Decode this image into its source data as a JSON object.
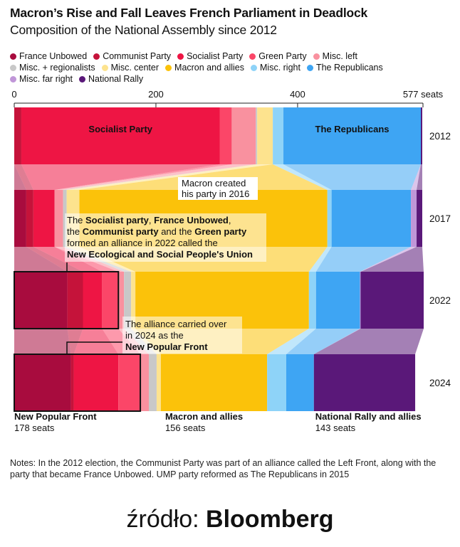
{
  "title": "Macron’s Rise and Fall Leaves French Parliament in Deadlock",
  "subtitle": "Composition of the National Assembly since 2012",
  "source": {
    "prefix": "źródło:",
    "brand": "Bloomberg"
  },
  "notes": "Notes: In the 2012 election, the Communist Party was part of an alliance called the Left Front, along with the party that became France Unbowed. UMP party reformed as The Republicans in 2015",
  "chart_data": {
    "type": "area",
    "total": 577,
    "x_ticks": [
      {
        "value": 0,
        "label": "0"
      },
      {
        "value": 200,
        "label": "200"
      },
      {
        "value": 400,
        "label": "400"
      },
      {
        "value": 577,
        "label": "577 seats"
      }
    ],
    "parties": [
      {
        "key": "fu",
        "name": "France Unbowed",
        "color": "#a80c3e"
      },
      {
        "key": "com",
        "name": "Communist Party",
        "color": "#c5133a"
      },
      {
        "key": "soc",
        "name": "Socialist Party",
        "color": "#ee1544"
      },
      {
        "key": "grn",
        "name": "Green Party",
        "color": "#fb4668"
      },
      {
        "key": "mleft",
        "name": "Misc. left",
        "color": "#f9919f"
      },
      {
        "key": "mreg",
        "name": "Misc. + regionalists",
        "color": "#c8c8c8"
      },
      {
        "key": "mcen",
        "name": "Misc. center",
        "color": "#fde38e"
      },
      {
        "key": "mac",
        "name": "Macron and allies",
        "color": "#fbc20a"
      },
      {
        "key": "mrt",
        "name": "Misc. right",
        "color": "#8ed3f8"
      },
      {
        "key": "rep",
        "name": "The Republicans",
        "color": "#3ea5f3"
      },
      {
        "key": "mfr",
        "name": "Misc. far right",
        "color": "#c096d8"
      },
      {
        "key": "nr",
        "name": "National Rally",
        "color": "#5a1879"
      }
    ],
    "years": [
      {
        "year": "2012",
        "seats": {
          "fu": 0,
          "com": 10,
          "soc": 280,
          "grn": 17,
          "mleft": 34,
          "mreg": 2,
          "mcen": 22,
          "mac": 0,
          "mrt": 15,
          "rep": 194,
          "mfr": 0,
          "nr": 2
        }
      },
      {
        "year": "2017",
        "seats": {
          "fu": 17,
          "com": 10,
          "soc": 30,
          "grn": 0,
          "mleft": 12,
          "mreg": 5,
          "mcen": 18,
          "mac": 350,
          "mrt": 6,
          "rep": 112,
          "mfr": 8,
          "nr": 8
        }
      },
      {
        "year": "2022",
        "seats": {
          "fu": 75,
          "com": 22,
          "soc": 27,
          "grn": 23,
          "mleft": 8,
          "mreg": 10,
          "mcen": 6,
          "mac": 245,
          "mrt": 10,
          "rep": 62,
          "mfr": 1,
          "nr": 89
        }
      },
      {
        "year": "2024",
        "seats": {
          "fu": 80,
          "com": 4,
          "soc": 63,
          "grn": 31,
          "mleft": 12,
          "mreg": 11,
          "mcen": 6,
          "mac": 150,
          "mrt": 27,
          "rep": 39,
          "mfr": 0,
          "nr": 143
        }
      }
    ],
    "bar_labels": [
      {
        "year": "2012",
        "party": "soc",
        "text": "Socialist Party"
      },
      {
        "year": "2012",
        "party": "rep",
        "text": "The Republicans"
      }
    ],
    "annotations": {
      "macron": [
        "Macron created",
        "his party in 2016"
      ],
      "nupes": [
        [
          {
            "t": "The "
          },
          {
            "t": "Socialist party",
            "b": true
          },
          {
            "t": ", "
          },
          {
            "t": "France Unbowed",
            "b": true
          },
          {
            "t": ","
          }
        ],
        [
          {
            "t": "the "
          },
          {
            "t": "Communist party",
            "b": true
          },
          {
            "t": " and the "
          },
          {
            "t": "Green party",
            "b": true
          }
        ],
        [
          {
            "t": "formed an alliance in 2022 called the"
          }
        ],
        [
          {
            "t": "New Ecological and Social People's Union",
            "b": true
          }
        ]
      ],
      "nfp": [
        [
          {
            "t": "The alliance carried over"
          }
        ],
        [
          {
            "t": "in 2024 as the"
          }
        ],
        [
          {
            "t": "New Popular Front",
            "b": true
          }
        ]
      ]
    },
    "blocs": [
      {
        "name": "New Popular Front",
        "seats": "178 seats"
      },
      {
        "name": "Macron and allies",
        "seats": "156 seats"
      },
      {
        "name": "National Rally and allies",
        "seats": "143 seats"
      }
    ]
  }
}
